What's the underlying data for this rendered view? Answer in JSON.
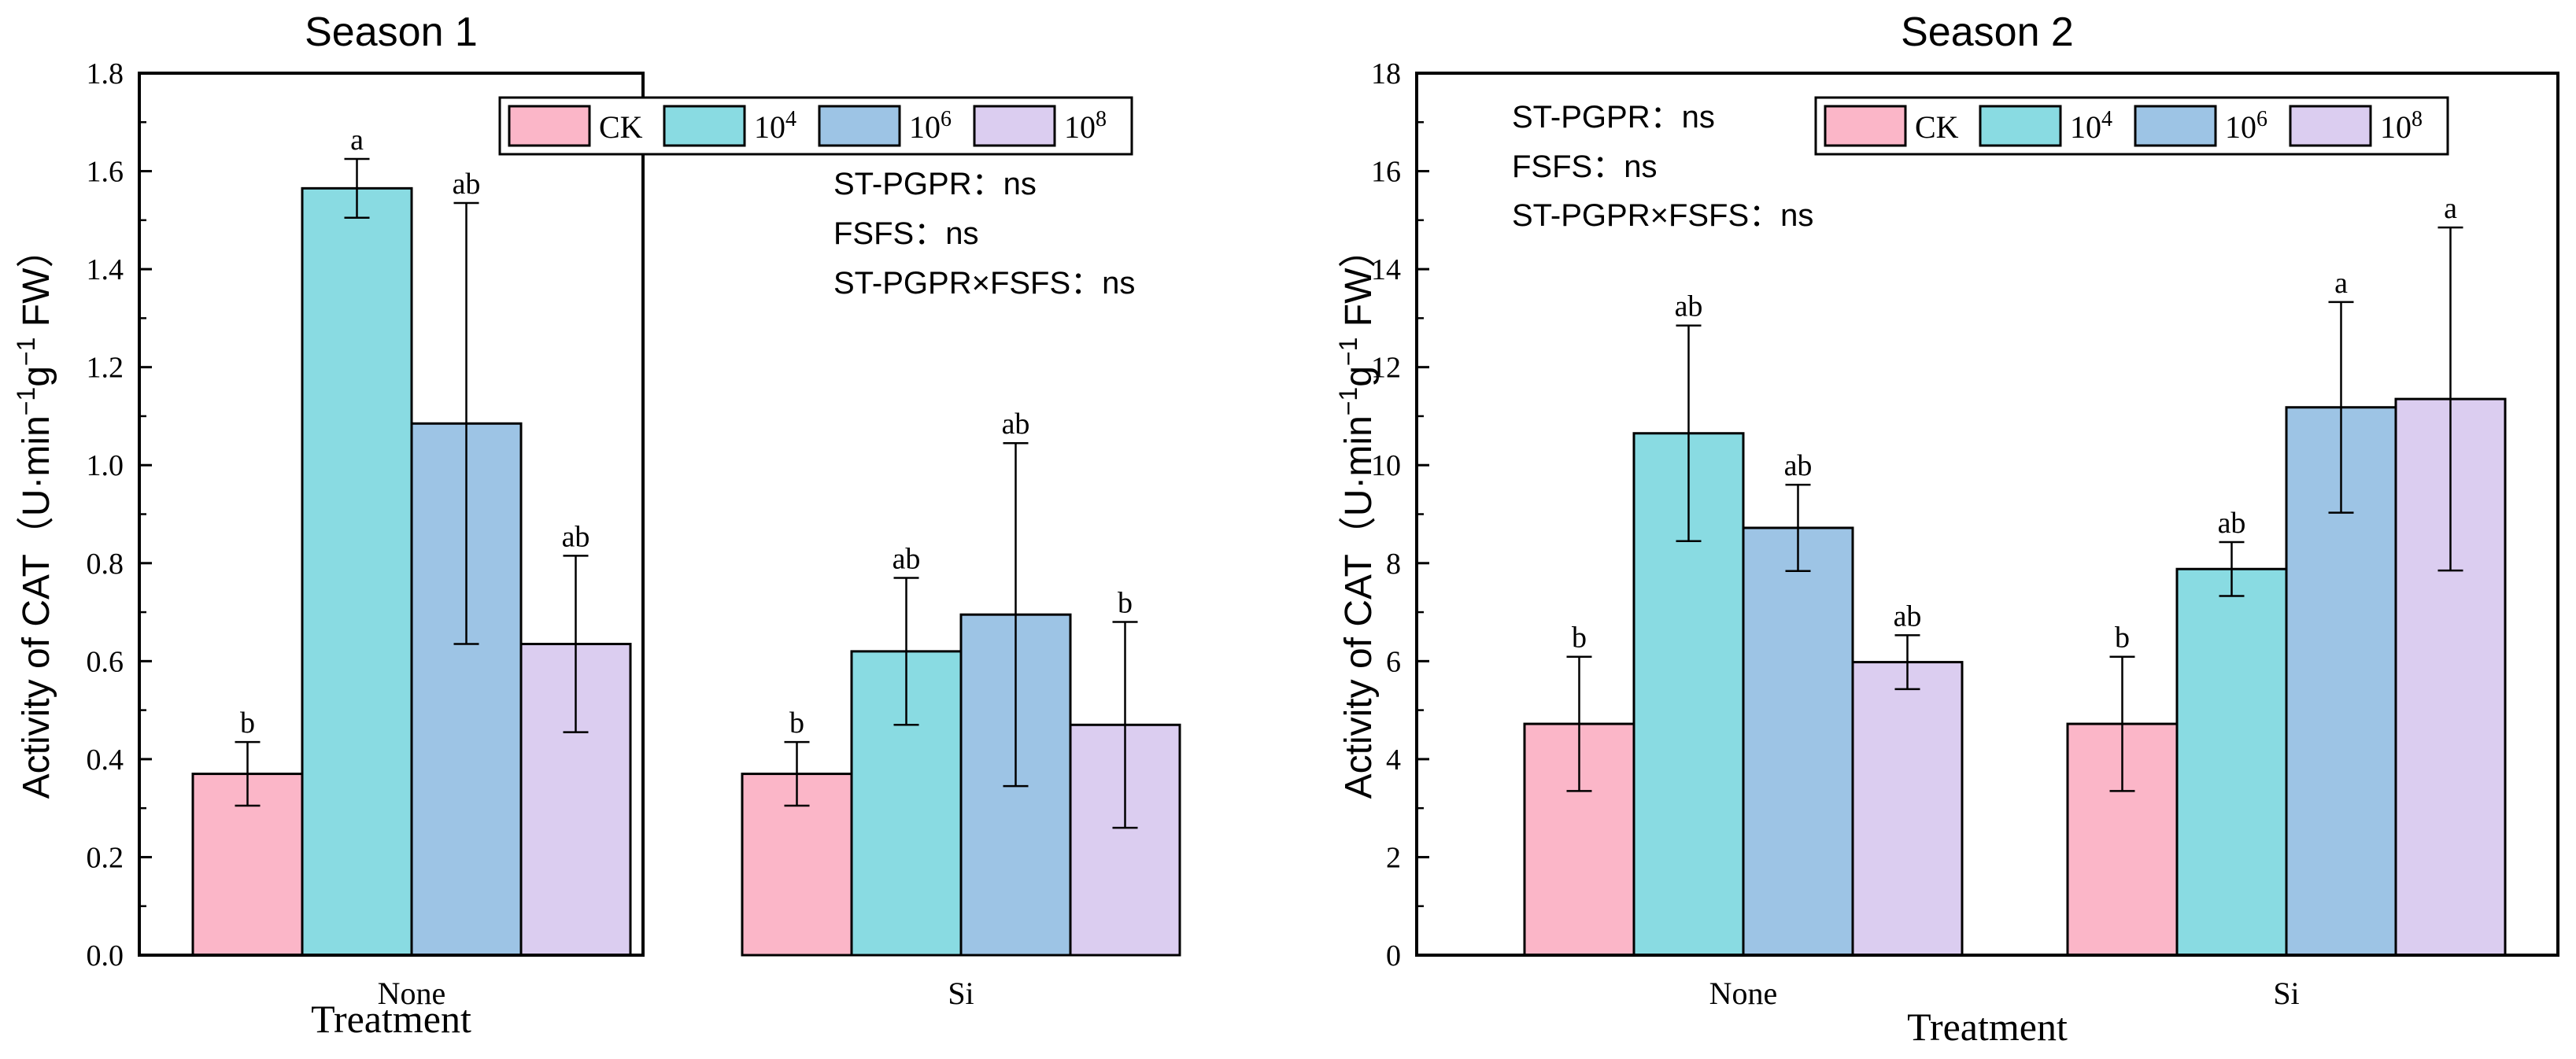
{
  "figure": {
    "colors": {
      "CK": "#fbb6c8",
      "10^4": "#89dbe2",
      "10^6": "#9dc4e5",
      "10^8": "#dbcdf0",
      "axis": "#000000"
    }
  },
  "chart_data": [
    {
      "type": "bar",
      "title": "Season 1",
      "xlabel": "Treatment",
      "ylabel": "Activity of CAT（U·min⁻¹g⁻¹ FW）",
      "ylabel_parts": {
        "pre": "Activity of CAT（U·min",
        "sup1": "−1",
        "mid": "g",
        "sup2": "−1",
        "post": " FW）"
      },
      "ylim": [
        0,
        1.8
      ],
      "yticks": [
        0.0,
        0.2,
        0.4,
        0.6,
        0.8,
        1.0,
        1.2,
        1.4,
        1.6,
        1.8
      ],
      "ytick_labels": [
        "0.0",
        "0.2",
        "0.4",
        "0.6",
        "0.8",
        "1.0",
        "1.2",
        "1.4",
        "1.6",
        "1.8"
      ],
      "categories": [
        "None",
        "Si"
      ],
      "legend_position": "top-right",
      "series": [
        {
          "key": "CK",
          "name": "CK",
          "base": "CK",
          "exp": "",
          "values": [
            0.37,
            0.37
          ],
          "errors": [
            0.065,
            0.065
          ],
          "letters": [
            "b",
            "b"
          ]
        },
        {
          "key": "10^4",
          "name": "10^4",
          "base": "10",
          "exp": "4",
          "values": [
            1.565,
            0.62
          ],
          "errors": [
            0.06,
            0.15
          ],
          "letters": [
            "a",
            "ab"
          ]
        },
        {
          "key": "10^6",
          "name": "10^6",
          "base": "10",
          "exp": "6",
          "values": [
            1.085,
            0.695
          ],
          "errors": [
            0.45,
            0.35
          ],
          "letters": [
            "ab",
            "ab"
          ]
        },
        {
          "key": "10^8",
          "name": "10^8",
          "base": "10",
          "exp": "8",
          "values": [
            0.635,
            0.47
          ],
          "errors": [
            0.18,
            0.21
          ],
          "letters": [
            "ab",
            "b"
          ]
        }
      ],
      "annotations": [
        "ST-PGPR：ns",
        "FSFS：ns",
        "ST-PGPR×FSFS：ns"
      ]
    },
    {
      "type": "bar",
      "title": "Season 2",
      "xlabel": "Treatment",
      "ylabel": "Activity of CAT（U·min⁻¹g⁻¹ FW）",
      "ylabel_parts": {
        "pre": "Activity of CAT（U·min",
        "sup1": "−1",
        "mid": "g",
        "sup2": "−1",
        "post": " FW）"
      },
      "ylim": [
        0,
        18
      ],
      "yticks": [
        0,
        2,
        4,
        6,
        8,
        10,
        12,
        14,
        16,
        18
      ],
      "ytick_labels": [
        "0",
        "2",
        "4",
        "6",
        "8",
        "10",
        "12",
        "14",
        "16",
        "18"
      ],
      "categories": [
        "None",
        "Si"
      ],
      "legend_position": "top-right",
      "series": [
        {
          "key": "CK",
          "name": "CK",
          "base": "CK",
          "exp": "",
          "values": [
            4.72,
            4.72
          ],
          "errors": [
            1.37,
            1.37
          ],
          "letters": [
            "b",
            "b"
          ]
        },
        {
          "key": "10^4",
          "name": "10^4",
          "base": "10",
          "exp": "4",
          "values": [
            10.65,
            7.88
          ],
          "errors": [
            2.2,
            0.55
          ],
          "letters": [
            "ab",
            "ab"
          ]
        },
        {
          "key": "10^6",
          "name": "10^6",
          "base": "10",
          "exp": "6",
          "values": [
            8.72,
            11.18
          ],
          "errors": [
            0.88,
            2.15
          ],
          "letters": [
            "ab",
            "a"
          ]
        },
        {
          "key": "10^8",
          "name": "10^8",
          "base": "10",
          "exp": "8",
          "values": [
            5.98,
            11.35
          ],
          "errors": [
            0.55,
            3.5
          ],
          "letters": [
            "ab",
            "a"
          ]
        }
      ],
      "annotations": [
        "ST-PGPR：ns",
        "FSFS：ns",
        "ST-PGPR×FSFS：ns"
      ]
    }
  ]
}
